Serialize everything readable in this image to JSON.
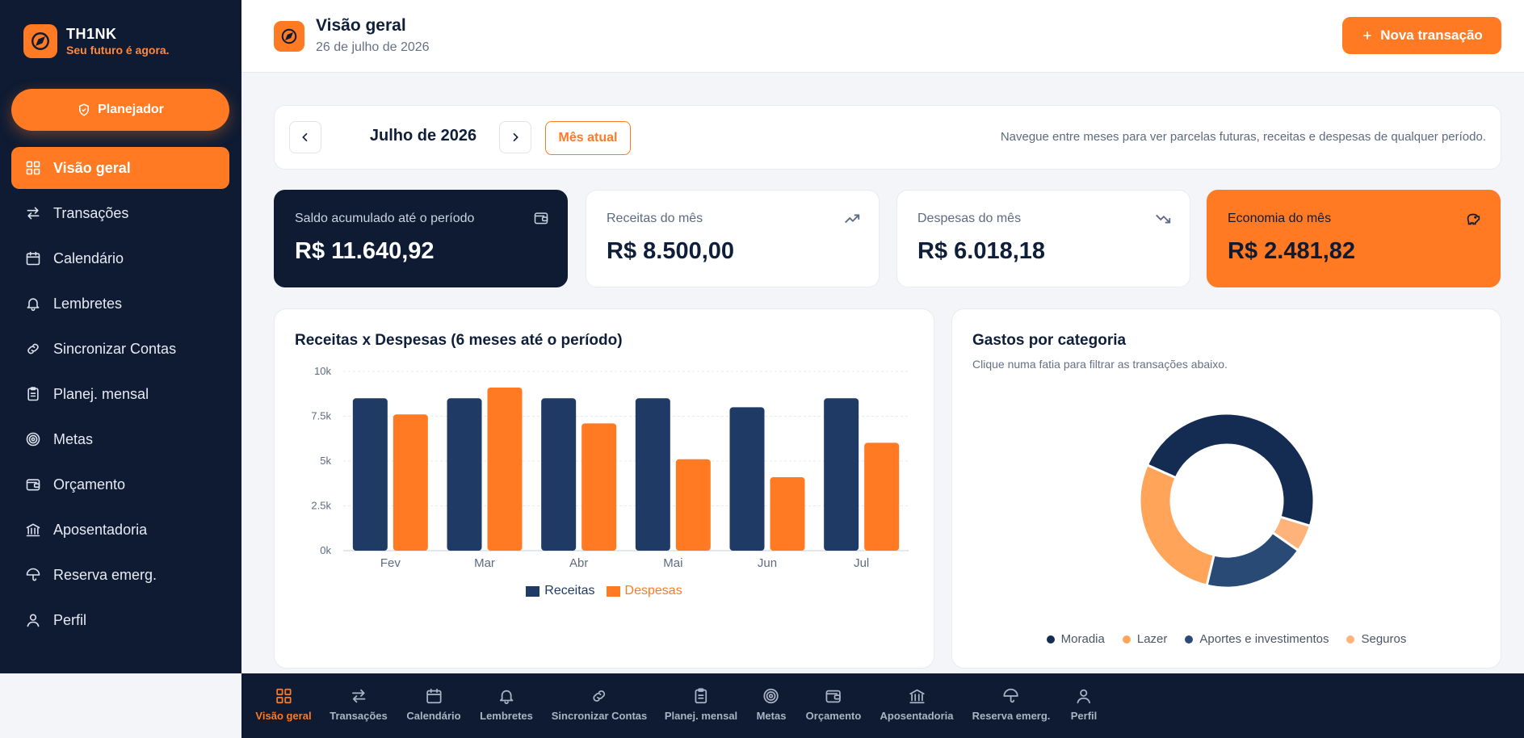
{
  "brand": {
    "name": "TH1NK",
    "tagline": "Seu futuro é agora."
  },
  "planner_button": "Planejador",
  "sidebar": {
    "items": [
      {
        "label": "Visão geral",
        "icon": "grid-icon",
        "active": true
      },
      {
        "label": "Transações",
        "icon": "arrows-swap-icon"
      },
      {
        "label": "Calendário",
        "icon": "calendar-icon"
      },
      {
        "label": "Lembretes",
        "icon": "bell-icon"
      },
      {
        "label": "Sincronizar Contas",
        "icon": "link-icon"
      },
      {
        "label": "Planej. mensal",
        "icon": "clipboard-icon"
      },
      {
        "label": "Metas",
        "icon": "target-icon"
      },
      {
        "label": "Orçamento",
        "icon": "wallet-icon"
      },
      {
        "label": "Aposentadoria",
        "icon": "bank-icon"
      },
      {
        "label": "Reserva emerg.",
        "icon": "umbrella-icon"
      },
      {
        "label": "Perfil",
        "icon": "user-icon"
      }
    ]
  },
  "header": {
    "title": "Visão geral",
    "date": "26 de julho de 2026",
    "new_transaction": "Nova transação"
  },
  "month_nav": {
    "label": "Julho de 2026",
    "current_button": "Mês atual",
    "hint": "Navegue entre meses para ver parcelas futuras, receitas e despesas de qualquer período."
  },
  "stats": {
    "saldo": {
      "label": "Saldo acumulado até o período",
      "value": "R$ 11.640,92"
    },
    "receitas": {
      "label": "Receitas do mês",
      "value": "R$ 8.500,00"
    },
    "despesas": {
      "label": "Despesas do mês",
      "value": "R$ 6.018,18"
    },
    "economia": {
      "label": "Economia do mês",
      "value": "R$ 2.481,82"
    }
  },
  "bar_panel": {
    "title": "Receitas x Despesas (6 meses até o período)"
  },
  "pie_panel": {
    "title": "Gastos por categoria",
    "subtitle": "Clique numa fatia para filtrar as transações abaixo."
  },
  "colors": {
    "accent": "#ff7a22",
    "navy": "#0e1b33",
    "receitas": "#1f3a64",
    "despesas": "#ff7a22"
  },
  "chart_data": [
    {
      "type": "bar",
      "title": "Receitas x Despesas (6 meses até o período)",
      "categories": [
        "Fev",
        "Mar",
        "Abr",
        "Mai",
        "Jun",
        "Jul"
      ],
      "series": [
        {
          "name": "Receitas",
          "values": [
            8500,
            8500,
            8500,
            8500,
            8000,
            8500
          ]
        },
        {
          "name": "Despesas",
          "values": [
            7600,
            9100,
            7100,
            5100,
            4100,
            6018
          ]
        }
      ],
      "ylim": [
        0,
        10000
      ],
      "yticks": [
        "0k",
        "2.5k",
        "5k",
        "7.5k",
        "10k"
      ],
      "ytick_values": [
        0,
        2500,
        5000,
        7500,
        10000
      ],
      "grid": true,
      "legend": "bottom"
    },
    {
      "type": "pie",
      "title": "Gastos por categoria",
      "donut": true,
      "slices": [
        {
          "name": "Moradia",
          "value": 48,
          "color": "#142c52"
        },
        {
          "name": "Seguros",
          "value": 5,
          "color": "#ffb37a"
        },
        {
          "name": "Aportes e investimentos",
          "value": 19,
          "color": "#2a4a76"
        },
        {
          "name": "Lazer",
          "value": 28,
          "color": "#ffa459"
        }
      ],
      "legend_order": [
        "Moradia",
        "Lazer",
        "Aportes e investimentos",
        "Seguros"
      ],
      "legend": "bottom"
    }
  ],
  "bottom_nav": [
    {
      "label": "Visão geral",
      "icon": "grid-icon",
      "active": true
    },
    {
      "label": "Transações",
      "icon": "arrows-swap-icon"
    },
    {
      "label": "Calendário",
      "icon": "calendar-icon"
    },
    {
      "label": "Lembretes",
      "icon": "bell-icon"
    },
    {
      "label": "Sincronizar Contas",
      "icon": "link-icon"
    },
    {
      "label": "Planej. mensal",
      "icon": "clipboard-icon"
    },
    {
      "label": "Metas",
      "icon": "target-icon"
    },
    {
      "label": "Orçamento",
      "icon": "wallet-icon"
    },
    {
      "label": "Aposentadoria",
      "icon": "bank-icon"
    },
    {
      "label": "Reserva emerg.",
      "icon": "umbrella-icon"
    },
    {
      "label": "Perfil",
      "icon": "user-icon"
    }
  ]
}
